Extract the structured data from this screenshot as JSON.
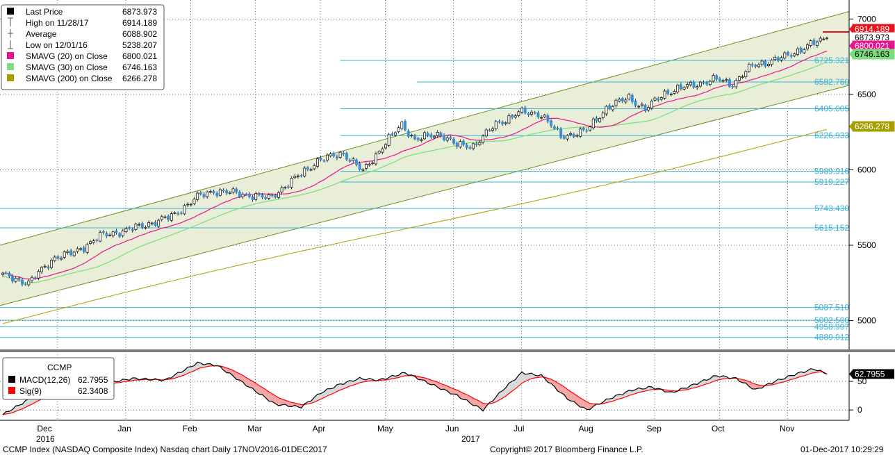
{
  "chart_data": [
    {
      "type": "candlestick",
      "title": "CCMP",
      "ylim": [
        4800,
        7080
      ],
      "y_ticks": [
        "5000",
        "5500",
        "6000",
        "6500",
        "7000"
      ],
      "x_months": [
        "Dec",
        "Jan",
        "Feb",
        "Mar",
        "Apr",
        "May",
        "Jun",
        "Jul",
        "Aug",
        "Sep",
        "Oct",
        "Nov"
      ],
      "x_years": [
        "2016",
        "2017"
      ],
      "legend": [
        {
          "label": "Last Price",
          "value": "6873.973",
          "color": "#000000",
          "icon": "square-icon"
        },
        {
          "label": "High on 11/28/17",
          "value": "6914.189",
          "color": "#000000",
          "icon": "high-icon"
        },
        {
          "label": "Average",
          "value": "6088.902",
          "color": "#000000",
          "icon": "average-icon"
        },
        {
          "label": "Low on 12/01/16",
          "value": "5238.207",
          "color": "#000000",
          "icon": "low-icon"
        },
        {
          "label": "SMAVG (20) on Close",
          "value": "6800.021",
          "color": "#e8148c",
          "icon": "square-icon"
        },
        {
          "label": "SMAVG (30) on Close",
          "value": "6746.163",
          "color": "#7ddc7d",
          "icon": "square-icon"
        },
        {
          "label": "SMAVG (200) on Close",
          "value": "6266.278",
          "color": "#a5a000",
          "icon": "square-icon"
        }
      ],
      "price_anchors": [
        [
          0,
          5300
        ],
        [
          8,
          5250
        ],
        [
          16,
          5420
        ],
        [
          22,
          5450
        ],
        [
          30,
          5560
        ],
        [
          40,
          5610
        ],
        [
          52,
          5690
        ],
        [
          60,
          5820
        ],
        [
          65,
          5860
        ],
        [
          74,
          5840
        ],
        [
          82,
          5810
        ],
        [
          90,
          5940
        ],
        [
          97,
          6060
        ],
        [
          105,
          6110
        ],
        [
          111,
          5990
        ],
        [
          118,
          6180
        ],
        [
          123,
          6300
        ],
        [
          127,
          6200
        ],
        [
          135,
          6240
        ],
        [
          140,
          6160
        ],
        [
          145,
          6160
        ],
        [
          152,
          6300
        ],
        [
          159,
          6380
        ],
        [
          166,
          6370
        ],
        [
          172,
          6220
        ],
        [
          180,
          6260
        ],
        [
          186,
          6410
        ],
        [
          193,
          6480
        ],
        [
          198,
          6400
        ],
        [
          204,
          6510
        ],
        [
          212,
          6560
        ],
        [
          220,
          6600
        ],
        [
          225,
          6570
        ],
        [
          231,
          6690
        ],
        [
          240,
          6740
        ],
        [
          248,
          6820
        ],
        [
          254,
          6874
        ]
      ],
      "channel": {
        "upper": [
          5500,
          7050
        ],
        "lower": [
          5100,
          6560
        ]
      },
      "sma200": [
        4980,
        6266.278
      ],
      "fib_levels": [
        "6725.321",
        "6582.760",
        "6405.005",
        "6226.933",
        "5989.916",
        "5919.227",
        "5743.430",
        "5615.152",
        "5087.510",
        "5002.500",
        "4958.997",
        "4889.012"
      ],
      "high_marker": "6914.189",
      "right_tags": [
        {
          "text": "6914.189",
          "bg": "#e8141c",
          "fg": "#ffffff"
        },
        {
          "text": "6873.973",
          "bg": "#ffffff",
          "fg": "#000000"
        },
        {
          "text": "6800.021",
          "bg": "#e8148c",
          "fg": "#ffffff"
        },
        {
          "text": "6746.163",
          "bg": "#7ddc7d",
          "fg": "#000000"
        },
        {
          "text": "6266.278",
          "bg": "#a5a000",
          "fg": "#ffffff"
        }
      ]
    },
    {
      "type": "line",
      "title": "CCMP",
      "ylim": [
        -18,
        90
      ],
      "y_ticks": [
        "0",
        "50"
      ],
      "legend": [
        {
          "label": "MACD(12,26)",
          "value": "62.7955",
          "color": "#000000"
        },
        {
          "label": "Sig(9)",
          "value": "62.3408",
          "color": "#ff0000"
        }
      ],
      "macd_anchors": [
        [
          0,
          -8
        ],
        [
          10,
          25
        ],
        [
          20,
          48
        ],
        [
          30,
          45
        ],
        [
          40,
          55
        ],
        [
          50,
          52
        ],
        [
          60,
          82
        ],
        [
          66,
          78
        ],
        [
          76,
          40
        ],
        [
          84,
          10
        ],
        [
          92,
          5
        ],
        [
          98,
          30
        ],
        [
          104,
          45
        ],
        [
          110,
          55
        ],
        [
          116,
          52
        ],
        [
          124,
          65
        ],
        [
          132,
          45
        ],
        [
          140,
          25
        ],
        [
          148,
          0
        ],
        [
          155,
          40
        ],
        [
          160,
          65
        ],
        [
          166,
          60
        ],
        [
          174,
          20
        ],
        [
          180,
          0
        ],
        [
          187,
          20
        ],
        [
          194,
          35
        ],
        [
          200,
          40
        ],
        [
          206,
          30
        ],
        [
          212,
          42
        ],
        [
          220,
          60
        ],
        [
          226,
          55
        ],
        [
          232,
          35
        ],
        [
          238,
          50
        ],
        [
          244,
          62
        ],
        [
          250,
          72
        ],
        [
          254,
          62.7955
        ]
      ],
      "value_tag": {
        "text": "62.7955",
        "bg": "#000000",
        "fg": "#ffffff"
      }
    }
  ],
  "footer": {
    "left": "CCMP Index (NASDAQ Composite Index) Nasdaq chart  Daily 17NOV2016-01DEC2017",
    "center": "Copyright© 2017 Bloomberg Finance L.P.",
    "right": "01-Dec-2017 10:29:29"
  },
  "sub_legend_title": "CCMP"
}
